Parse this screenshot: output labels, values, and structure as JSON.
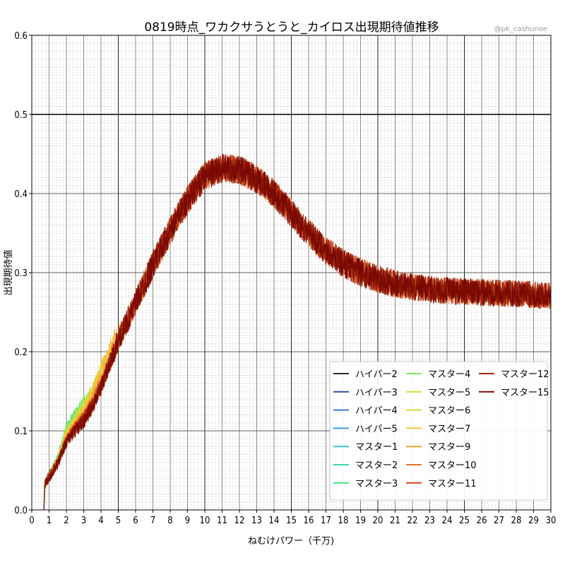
{
  "chart_data": {
    "type": "line",
    "title": "0819時点_ワカクサうとうと_カイロス出現期待値推移",
    "watermark": "@pk_cashunoe",
    "xlabel": "ねむけパワー（千万)",
    "ylabel": "出現期待値",
    "xlim": [
      0,
      30
    ],
    "ylim": [
      0.0,
      0.6
    ],
    "x_ticks": [
      "0",
      "1",
      "2",
      "3",
      "4",
      "5",
      "6",
      "7",
      "8",
      "9",
      "10",
      "11",
      "12",
      "13",
      "14",
      "15",
      "16",
      "17",
      "18",
      "19",
      "20",
      "21",
      "22",
      "23",
      "24",
      "25",
      "26",
      "27",
      "28",
      "29",
      "30"
    ],
    "y_ticks": [
      "0.0",
      "0.1",
      "0.2",
      "0.3",
      "0.4",
      "0.5",
      "0.6"
    ],
    "grid": "major and minor",
    "legend_position": "lower-right",
    "legend_columns": 3,
    "series": [
      {
        "name": "ハイパー2",
        "color": "#2f2f2f",
        "points": [
          [
            0,
            0
          ],
          [
            0.7,
            0
          ],
          [
            0.75,
            0.033
          ],
          [
            1.0,
            0.045
          ],
          [
            1.15,
            0.05
          ]
        ]
      },
      {
        "name": "ハイパー3",
        "color": "#2e4ea6",
        "points": [
          [
            0,
            0
          ],
          [
            0.7,
            0
          ],
          [
            0.75,
            0.032
          ],
          [
            1.0,
            0.042
          ],
          [
            1.3,
            0.052
          ]
        ]
      },
      {
        "name": "ハイパー4",
        "color": "#3d7ad4",
        "points": [
          [
            0,
            0
          ],
          [
            0.7,
            0
          ],
          [
            0.75,
            0.032
          ],
          [
            1.0,
            0.042
          ],
          [
            1.5,
            0.058
          ],
          [
            1.8,
            0.085
          ]
        ]
      },
      {
        "name": "ハイパー5",
        "color": "#3b9ad8",
        "points": [
          [
            0,
            0
          ],
          [
            0.7,
            0
          ],
          [
            0.75,
            0.032
          ],
          [
            1.0,
            0.042
          ],
          [
            1.5,
            0.06
          ],
          [
            2.0,
            0.095
          ],
          [
            2.3,
            0.105
          ]
        ]
      },
      {
        "name": "マスター1",
        "color": "#35c0cf",
        "points": [
          [
            0,
            0
          ],
          [
            0.7,
            0
          ],
          [
            0.75,
            0.032
          ],
          [
            1.0,
            0.042
          ],
          [
            1.5,
            0.062
          ],
          [
            2.0,
            0.1
          ],
          [
            2.5,
            0.115
          ]
        ]
      },
      {
        "name": "マスター2",
        "color": "#34d9b0",
        "points": [
          [
            0,
            0
          ],
          [
            0.7,
            0
          ],
          [
            0.75,
            0.032
          ],
          [
            1.0,
            0.042
          ],
          [
            1.5,
            0.063
          ],
          [
            2.0,
            0.1
          ],
          [
            2.5,
            0.118
          ],
          [
            2.7,
            0.122
          ]
        ]
      },
      {
        "name": "マスター3",
        "color": "#3fea7d",
        "points": [
          [
            0,
            0
          ],
          [
            0.7,
            0
          ],
          [
            0.75,
            0.032
          ],
          [
            1.0,
            0.042
          ],
          [
            1.5,
            0.065
          ],
          [
            2.0,
            0.102
          ],
          [
            2.5,
            0.12
          ],
          [
            2.9,
            0.13
          ]
        ]
      },
      {
        "name": "マスター4",
        "color": "#78ee55",
        "points": [
          [
            0,
            0
          ],
          [
            0.7,
            0
          ],
          [
            0.75,
            0.032
          ],
          [
            1.0,
            0.042
          ],
          [
            1.5,
            0.065
          ],
          [
            2.0,
            0.1
          ],
          [
            2.5,
            0.118
          ],
          [
            3.0,
            0.135
          ],
          [
            3.3,
            0.14
          ]
        ]
      },
      {
        "name": "マスター5",
        "color": "#b8ea3c",
        "points": [
          [
            0,
            0
          ],
          [
            0.7,
            0
          ],
          [
            0.75,
            0.032
          ],
          [
            1.0,
            0.042
          ],
          [
            1.5,
            0.063
          ],
          [
            2.0,
            0.098
          ],
          [
            2.5,
            0.115
          ],
          [
            3.0,
            0.13
          ],
          [
            3.6,
            0.155
          ]
        ]
      },
      {
        "name": "マスター6",
        "color": "#ddd63b",
        "points": [
          [
            0,
            0
          ],
          [
            0.7,
            0
          ],
          [
            0.75,
            0.032
          ],
          [
            1.0,
            0.042
          ],
          [
            1.5,
            0.063
          ],
          [
            2.0,
            0.095
          ],
          [
            2.5,
            0.112
          ],
          [
            3.0,
            0.128
          ],
          [
            3.5,
            0.15
          ],
          [
            4.0,
            0.175
          ],
          [
            4.4,
            0.195
          ]
        ]
      },
      {
        "name": "マスター7",
        "color": "#f2c23a",
        "points": [
          [
            0,
            0
          ],
          [
            0.7,
            0
          ],
          [
            0.75,
            0.032
          ],
          [
            1.0,
            0.042
          ],
          [
            1.5,
            0.062
          ],
          [
            2.0,
            0.093
          ],
          [
            2.5,
            0.11
          ],
          [
            3.0,
            0.125
          ],
          [
            3.5,
            0.145
          ],
          [
            4.0,
            0.175
          ],
          [
            4.5,
            0.2
          ],
          [
            4.8,
            0.22
          ]
        ]
      },
      {
        "name": "マスター9",
        "color": "#f59a38",
        "points": [
          [
            0,
            0
          ],
          [
            0.7,
            0
          ],
          [
            0.75,
            0.032
          ],
          [
            1.0,
            0.042
          ],
          [
            1.5,
            0.06
          ],
          [
            2.0,
            0.09
          ],
          [
            2.5,
            0.105
          ],
          [
            3.0,
            0.118
          ],
          [
            3.5,
            0.138
          ],
          [
            4.0,
            0.165
          ],
          [
            4.5,
            0.19
          ],
          [
            5.0,
            0.22
          ],
          [
            5.5,
            0.24
          ],
          [
            6.0,
            0.262
          ],
          [
            6.3,
            0.28
          ]
        ]
      },
      {
        "name": "マスター10",
        "color": "#e8712a",
        "points": [
          [
            0,
            0
          ],
          [
            0.7,
            0
          ],
          [
            0.75,
            0.032
          ],
          [
            1.0,
            0.042
          ],
          [
            1.5,
            0.06
          ],
          [
            2.0,
            0.088
          ],
          [
            2.5,
            0.103
          ],
          [
            3.0,
            0.115
          ],
          [
            3.5,
            0.133
          ],
          [
            4.0,
            0.158
          ],
          [
            4.5,
            0.185
          ],
          [
            5.0,
            0.215
          ],
          [
            5.5,
            0.238
          ],
          [
            6.0,
            0.262
          ],
          [
            7.0,
            0.31
          ],
          [
            8.0,
            0.353
          ],
          [
            9.0,
            0.392
          ],
          [
            10.0,
            0.422
          ],
          [
            11.0,
            0.432
          ],
          [
            12.0,
            0.43
          ],
          [
            13.0,
            0.418
          ],
          [
            14.0,
            0.4
          ],
          [
            15.0,
            0.375
          ],
          [
            16.0,
            0.35
          ],
          [
            17.0,
            0.328
          ],
          [
            18.0,
            0.312
          ],
          [
            19.0,
            0.3
          ],
          [
            20.0,
            0.292
          ],
          [
            21.0,
            0.286
          ],
          [
            22.0,
            0.282
          ],
          [
            23.0,
            0.279
          ],
          [
            24.0,
            0.277
          ],
          [
            25.0,
            0.276
          ],
          [
            26.0,
            0.275
          ],
          [
            27.0,
            0.274
          ],
          [
            28.0,
            0.273
          ],
          [
            29.0,
            0.272
          ],
          [
            30.0,
            0.27
          ]
        ]
      },
      {
        "name": "マスター11",
        "color": "#c8481c",
        "points": [
          [
            0,
            0
          ],
          [
            0.7,
            0
          ],
          [
            0.75,
            0.032
          ],
          [
            1.0,
            0.042
          ],
          [
            1.5,
            0.06
          ],
          [
            2.0,
            0.088
          ],
          [
            2.5,
            0.103
          ],
          [
            3.0,
            0.115
          ],
          [
            3.5,
            0.133
          ],
          [
            4.0,
            0.158
          ],
          [
            4.5,
            0.185
          ],
          [
            5.0,
            0.215
          ],
          [
            5.5,
            0.238
          ],
          [
            6.0,
            0.262
          ],
          [
            7.0,
            0.31
          ],
          [
            8.0,
            0.353
          ],
          [
            9.0,
            0.392
          ],
          [
            10.0,
            0.422
          ],
          [
            11.0,
            0.432
          ],
          [
            12.0,
            0.43
          ],
          [
            13.0,
            0.418
          ],
          [
            14.0,
            0.4
          ],
          [
            15.0,
            0.375
          ],
          [
            16.0,
            0.35
          ],
          [
            17.0,
            0.328
          ],
          [
            18.0,
            0.312
          ],
          [
            19.0,
            0.3
          ],
          [
            20.0,
            0.292
          ],
          [
            21.0,
            0.286
          ],
          [
            22.0,
            0.282
          ],
          [
            23.0,
            0.279
          ],
          [
            24.0,
            0.277
          ],
          [
            25.0,
            0.276
          ],
          [
            26.0,
            0.275
          ],
          [
            27.0,
            0.274
          ],
          [
            28.0,
            0.273
          ],
          [
            29.0,
            0.272
          ],
          [
            30.0,
            0.27
          ]
        ]
      },
      {
        "name": "マスター12",
        "color": "#a52a0d",
        "points": [
          [
            0,
            0
          ],
          [
            0.7,
            0
          ],
          [
            0.75,
            0.032
          ],
          [
            1.0,
            0.042
          ],
          [
            1.5,
            0.06
          ],
          [
            2.0,
            0.088
          ],
          [
            2.5,
            0.103
          ],
          [
            3.0,
            0.115
          ],
          [
            3.5,
            0.133
          ],
          [
            4.0,
            0.158
          ],
          [
            4.5,
            0.185
          ],
          [
            5.0,
            0.215
          ],
          [
            5.5,
            0.238
          ],
          [
            6.0,
            0.262
          ],
          [
            7.0,
            0.31
          ],
          [
            8.0,
            0.353
          ],
          [
            9.0,
            0.392
          ],
          [
            10.0,
            0.422
          ],
          [
            11.0,
            0.432
          ],
          [
            12.0,
            0.43
          ],
          [
            13.0,
            0.418
          ],
          [
            14.0,
            0.4
          ],
          [
            15.0,
            0.375
          ],
          [
            16.0,
            0.35
          ],
          [
            17.0,
            0.328
          ],
          [
            18.0,
            0.312
          ],
          [
            19.0,
            0.3
          ],
          [
            20.0,
            0.292
          ],
          [
            21.0,
            0.286
          ],
          [
            22.0,
            0.282
          ],
          [
            23.0,
            0.279
          ],
          [
            24.0,
            0.277
          ],
          [
            25.0,
            0.276
          ],
          [
            26.0,
            0.275
          ],
          [
            27.0,
            0.274
          ],
          [
            28.0,
            0.273
          ],
          [
            29.0,
            0.272
          ],
          [
            30.0,
            0.27
          ]
        ]
      },
      {
        "name": "マスター15",
        "color": "#7a0a03",
        "points": [
          [
            0,
            0
          ],
          [
            0.7,
            0
          ],
          [
            0.75,
            0.032
          ],
          [
            1.0,
            0.04
          ],
          [
            1.5,
            0.058
          ],
          [
            2.0,
            0.086
          ],
          [
            2.5,
            0.1
          ],
          [
            3.0,
            0.112
          ],
          [
            3.5,
            0.13
          ],
          [
            4.0,
            0.155
          ],
          [
            4.5,
            0.183
          ],
          [
            5.0,
            0.214
          ],
          [
            5.5,
            0.237
          ],
          [
            6.0,
            0.261
          ],
          [
            7.0,
            0.31
          ],
          [
            8.0,
            0.353
          ],
          [
            9.0,
            0.392
          ],
          [
            10.0,
            0.422
          ],
          [
            11.0,
            0.432
          ],
          [
            12.0,
            0.43
          ],
          [
            13.0,
            0.418
          ],
          [
            14.0,
            0.4
          ],
          [
            15.0,
            0.375
          ],
          [
            16.0,
            0.35
          ],
          [
            17.0,
            0.328
          ],
          [
            18.0,
            0.312
          ],
          [
            19.0,
            0.3
          ],
          [
            20.0,
            0.292
          ],
          [
            21.0,
            0.286
          ],
          [
            22.0,
            0.282
          ],
          [
            23.0,
            0.279
          ],
          [
            24.0,
            0.277
          ],
          [
            25.0,
            0.276
          ],
          [
            26.0,
            0.275
          ],
          [
            27.0,
            0.274
          ],
          [
            28.0,
            0.273
          ],
          [
            29.0,
            0.272
          ],
          [
            30.0,
            0.27
          ]
        ]
      }
    ]
  }
}
